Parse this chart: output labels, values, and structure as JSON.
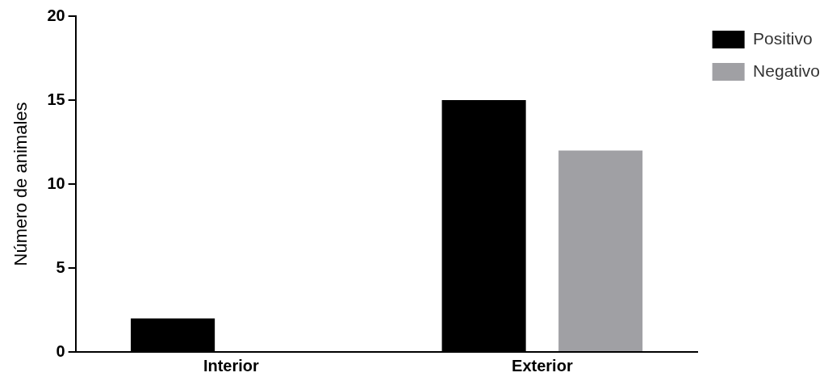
{
  "chart_data": {
    "type": "bar",
    "ylabel": "Número de animales",
    "categories": [
      "Interior",
      "Exterior"
    ],
    "series": [
      {
        "name": "Positivo",
        "color": "#000000",
        "values": [
          2,
          15
        ]
      },
      {
        "name": "Negativo",
        "color": "#a0a0a4",
        "values": [
          0,
          12
        ]
      }
    ],
    "ylim": [
      0,
      20
    ],
    "yticks": [
      0,
      5,
      10,
      15,
      20
    ],
    "grid": false,
    "legend": "top right"
  }
}
